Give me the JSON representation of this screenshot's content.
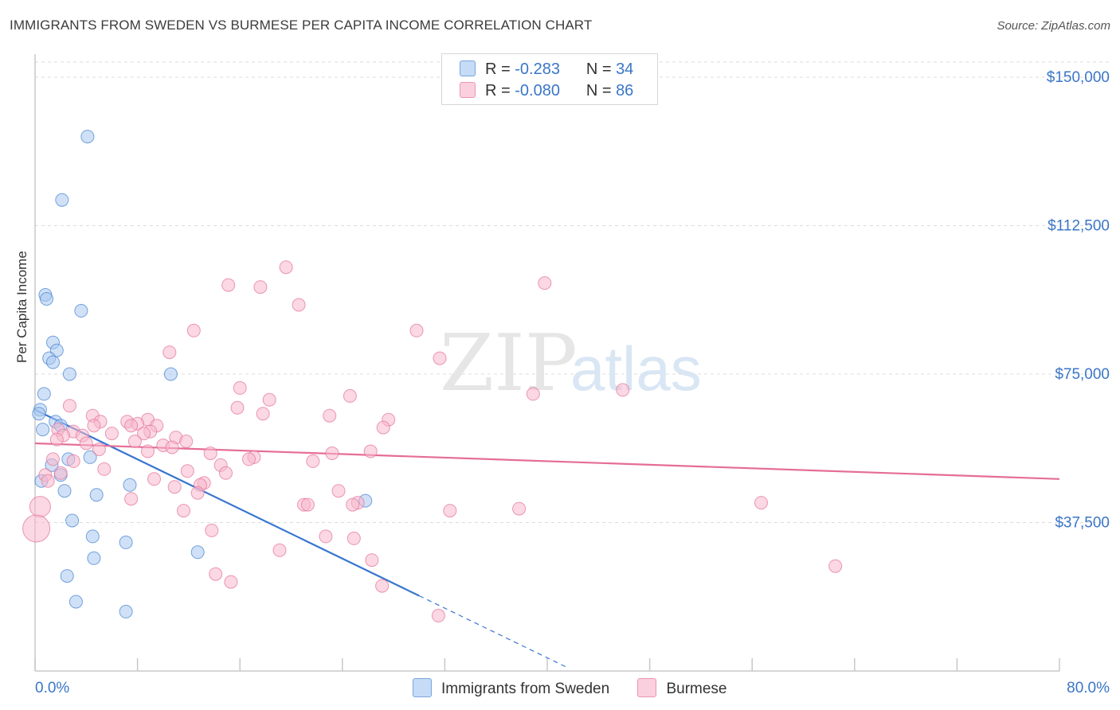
{
  "header": {
    "title": "IMMIGRANTS FROM SWEDEN VS BURMESE PER CAPITA INCOME CORRELATION CHART",
    "source": "Source: ZipAtlas.com"
  },
  "legend": {
    "rows": [
      {
        "r_label": "R =",
        "r_value": "-0.283",
        "n_label": "N =",
        "n_value": "34"
      },
      {
        "r_label": "R =",
        "r_value": "-0.080",
        "n_label": "N =",
        "n_value": "86"
      }
    ]
  },
  "watermark": {
    "zip": "ZIP",
    "atlas": "atlas"
  },
  "colors": {
    "sweden_fill": "#a9c9f0",
    "sweden_stroke": "#4a86d2",
    "sweden_line": "#3a76d0",
    "burmese_fill": "#f7b8cc",
    "burmese_stroke": "#e4779c",
    "burmese_line": "#e56d98",
    "tick_text": "#3a76c8",
    "grid": "#dcdcdc"
  },
  "chart_data": {
    "type": "scatter",
    "title": "IMMIGRANTS FROM SWEDEN VS BURMESE PER CAPITA INCOME CORRELATION CHART",
    "xlabel": "",
    "ylabel": "Per Capita Income",
    "xlim": [
      0,
      80
    ],
    "ylim": [
      0,
      155000
    ],
    "x_tick_labels": [
      "0.0%",
      "80.0%"
    ],
    "y_ticks": [
      37500,
      75000,
      112500,
      150000
    ],
    "y_tick_labels": [
      "$37,500",
      "$75,000",
      "$112,500",
      "$150,000"
    ],
    "series": [
      {
        "name": "Immigrants from Sweden",
        "R": -0.283,
        "N": 34,
        "trend": {
          "x0": 0,
          "y0": 66000,
          "x1": 30,
          "y1": 19000,
          "dashed_to_x": 41.5
        },
        "points": [
          [
            4.1,
            135000
          ],
          [
            2.1,
            119000
          ],
          [
            0.8,
            95000
          ],
          [
            0.9,
            94000
          ],
          [
            3.6,
            91000
          ],
          [
            1.4,
            83000
          ],
          [
            1.7,
            81000
          ],
          [
            1.1,
            79000
          ],
          [
            1.4,
            78000
          ],
          [
            2.7,
            75000
          ],
          [
            10.6,
            75000
          ],
          [
            0.7,
            70000
          ],
          [
            0.4,
            66000
          ],
          [
            0.3,
            65000
          ],
          [
            1.6,
            63000
          ],
          [
            0.6,
            61000
          ],
          [
            2.0,
            62000
          ],
          [
            4.3,
            54000
          ],
          [
            2.6,
            53500
          ],
          [
            1.3,
            52000
          ],
          [
            2.0,
            49500
          ],
          [
            0.5,
            48000
          ],
          [
            7.4,
            47000
          ],
          [
            2.3,
            45500
          ],
          [
            4.8,
            44500
          ],
          [
            25.8,
            43000
          ],
          [
            2.9,
            38000
          ],
          [
            4.5,
            34000
          ],
          [
            7.1,
            32500
          ],
          [
            12.7,
            30000
          ],
          [
            4.6,
            28500
          ],
          [
            2.5,
            24000
          ],
          [
            3.2,
            17500
          ],
          [
            7.1,
            15000
          ]
        ]
      },
      {
        "name": "Burmese",
        "R": -0.08,
        "N": 86,
        "trend": {
          "x0": 0,
          "y0": 57500,
          "x1": 80,
          "y1": 48500
        },
        "points": [
          [
            19.6,
            102000
          ],
          [
            15.1,
            97500
          ],
          [
            17.6,
            97000
          ],
          [
            39.8,
            98000
          ],
          [
            20.6,
            92500
          ],
          [
            12.4,
            86000
          ],
          [
            29.8,
            86000
          ],
          [
            10.5,
            80500
          ],
          [
            31.6,
            79000
          ],
          [
            16.0,
            71500
          ],
          [
            45.9,
            71000
          ],
          [
            38.9,
            70000
          ],
          [
            24.6,
            69500
          ],
          [
            18.3,
            68500
          ],
          [
            2.7,
            67000
          ],
          [
            15.8,
            66500
          ],
          [
            17.8,
            65000
          ],
          [
            23.0,
            64500
          ],
          [
            4.5,
            64500
          ],
          [
            27.6,
            63500
          ],
          [
            8.8,
            63500
          ],
          [
            5.1,
            63000
          ],
          [
            7.2,
            63000
          ],
          [
            8.0,
            62500
          ],
          [
            7.5,
            62000
          ],
          [
            4.6,
            62000
          ],
          [
            9.5,
            62000
          ],
          [
            27.2,
            61500
          ],
          [
            1.8,
            61000
          ],
          [
            3.0,
            60500
          ],
          [
            9.0,
            60500
          ],
          [
            6.0,
            60000
          ],
          [
            8.5,
            60000
          ],
          [
            2.2,
            59500
          ],
          [
            3.7,
            59500
          ],
          [
            11.0,
            59000
          ],
          [
            1.7,
            58500
          ],
          [
            7.8,
            58000
          ],
          [
            11.8,
            58000
          ],
          [
            4.0,
            57500
          ],
          [
            10.0,
            57000
          ],
          [
            10.7,
            56500
          ],
          [
            5.0,
            56000
          ],
          [
            26.2,
            55500
          ],
          [
            8.8,
            55500
          ],
          [
            23.2,
            55000
          ],
          [
            13.7,
            55000
          ],
          [
            17.1,
            54000
          ],
          [
            16.7,
            53500
          ],
          [
            21.7,
            53000
          ],
          [
            1.4,
            53500
          ],
          [
            3.0,
            53000
          ],
          [
            14.5,
            52000
          ],
          [
            5.4,
            51000
          ],
          [
            11.9,
            50500
          ],
          [
            14.9,
            50000
          ],
          [
            2.0,
            50000
          ],
          [
            0.8,
            49500
          ],
          [
            9.3,
            48500
          ],
          [
            1.0,
            48000
          ],
          [
            13.2,
            47500
          ],
          [
            12.9,
            47000
          ],
          [
            10.9,
            46500
          ],
          [
            23.7,
            45500
          ],
          [
            12.7,
            45000
          ],
          [
            7.5,
            43500
          ],
          [
            25.2,
            42500
          ],
          [
            56.7,
            42500
          ],
          [
            21.0,
            42000
          ],
          [
            21.3,
            42000
          ],
          [
            24.8,
            42000
          ],
          [
            0.4,
            41500
          ],
          [
            37.8,
            41000
          ],
          [
            32.4,
            40500
          ],
          [
            11.6,
            40500
          ],
          [
            0.1,
            36000
          ],
          [
            13.8,
            35500
          ],
          [
            22.7,
            34000
          ],
          [
            24.9,
            33500
          ],
          [
            19.1,
            30500
          ],
          [
            26.3,
            28000
          ],
          [
            62.5,
            26500
          ],
          [
            14.1,
            24500
          ],
          [
            15.3,
            22500
          ],
          [
            27.1,
            21500
          ],
          [
            31.5,
            14000
          ]
        ]
      }
    ],
    "legend_position": "top-center"
  }
}
